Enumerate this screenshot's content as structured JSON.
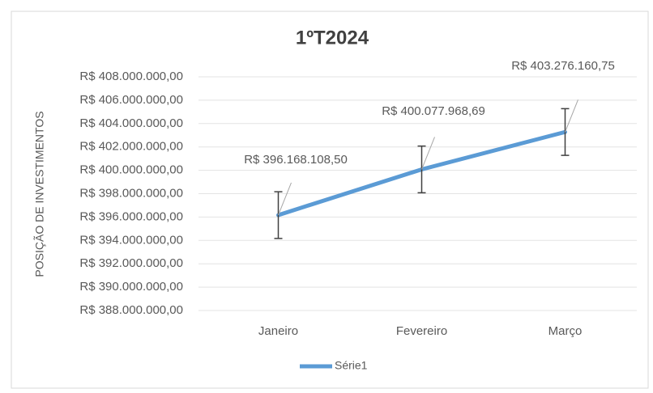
{
  "chart_data": {
    "type": "line",
    "title": "1ºT2024",
    "y_label": "POSIÇÃO DE INVESTIMENTOS",
    "categories": [
      "Janeiro",
      "Fevereiro",
      "Março"
    ],
    "series": [
      {
        "name": "Série1",
        "color": "#5b9bd5",
        "values": [
          396168108.5,
          400077968.69,
          403276160.75
        ],
        "value_labels": [
          "R$ 396.168.108,50",
          "R$ 400.077.968,69",
          "R$ 403.276.160,75"
        ],
        "errors": [
          2000000,
          2000000,
          2000000
        ]
      }
    ],
    "ylim": [
      388000000,
      408000000
    ],
    "yticks": [
      {
        "value": 388000000,
        "label": "R$ 388.000.000,00"
      },
      {
        "value": 390000000,
        "label": "R$ 390.000.000,00"
      },
      {
        "value": 392000000,
        "label": "R$ 392.000.000,00"
      },
      {
        "value": 394000000,
        "label": "R$ 394.000.000,00"
      },
      {
        "value": 396000000,
        "label": "R$ 396.000.000,00"
      },
      {
        "value": 398000000,
        "label": "R$ 398.000.000,00"
      },
      {
        "value": 400000000,
        "label": "R$ 400.000.000,00"
      },
      {
        "value": 402000000,
        "label": "R$ 402.000.000,00"
      },
      {
        "value": 404000000,
        "label": "R$ 404.000.000,00"
      },
      {
        "value": 406000000,
        "label": "R$ 406.000.000,00"
      },
      {
        "value": 408000000,
        "label": "R$ 408.000.000,00"
      }
    ],
    "grid": true,
    "legend": "bottom"
  }
}
